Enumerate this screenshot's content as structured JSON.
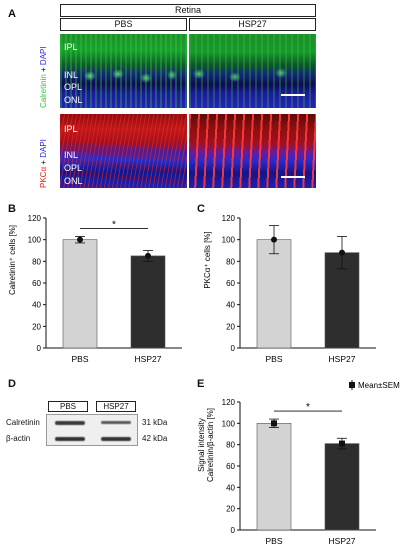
{
  "panels": {
    "A": "A",
    "B": "B",
    "C": "C",
    "D": "D",
    "E": "E"
  },
  "panel_a": {
    "region": "Retina",
    "columns": [
      "PBS",
      "HSP27"
    ],
    "top_row": {
      "stain_main": "Calretinin",
      "stain_sep": " + ",
      "stain_counter": "DAPI",
      "colors": {
        "main": "#2fc43a",
        "counter": "#2a2ad8"
      },
      "layers": [
        "IPL",
        "INL",
        "OPL",
        "ONL"
      ]
    },
    "bottom_row": {
      "stain_main": "PKCα",
      "stain_sep": " + ",
      "stain_counter": "DAPI",
      "colors": {
        "main": "#e41b1b",
        "counter": "#2a2ad8"
      },
      "layers": [
        "IPL",
        "INL",
        "OPL",
        "ONL"
      ]
    }
  },
  "panel_d": {
    "columns": [
      "PBS",
      "HSP27"
    ],
    "rows": [
      {
        "label": "Calretinin",
        "size": "31 kDa"
      },
      {
        "label": "β-actin",
        "size": "42 kDa"
      }
    ]
  },
  "chart_data": [
    {
      "type": "bar",
      "panel": "B",
      "categories": [
        "PBS",
        "HSP27"
      ],
      "values": [
        100,
        85
      ],
      "errors": [
        3,
        5
      ],
      "ylabel": "Calretinin⁺ cells [%]",
      "ylim": [
        0,
        120
      ],
      "yticks": [
        "0",
        "20",
        "40",
        "60",
        "80",
        "100",
        "120"
      ],
      "significance": "*",
      "colors": [
        "#d3d3d3",
        "#2e2e2e"
      ]
    },
    {
      "type": "bar",
      "panel": "C",
      "categories": [
        "PBS",
        "HSP27"
      ],
      "values": [
        100,
        88
      ],
      "errors": [
        13,
        15
      ],
      "ylabel": "PKCα⁺ cells [%]",
      "ylim": [
        0,
        120
      ],
      "yticks": [
        "0",
        "20",
        "40",
        "60",
        "80",
        "100",
        "120"
      ],
      "significance": "",
      "colors": [
        "#d3d3d3",
        "#2e2e2e"
      ]
    },
    {
      "type": "bar",
      "panel": "E",
      "categories": [
        "PBS",
        "HSP27"
      ],
      "values": [
        100,
        81
      ],
      "errors": [
        4,
        5
      ],
      "ylabel_line1": "Signal intensity",
      "ylabel_line2": "Calretinin/β-actin  [%]",
      "ylim": [
        0,
        120
      ],
      "yticks": [
        "0",
        "20",
        "40",
        "60",
        "80",
        "100",
        "120"
      ],
      "significance": "*",
      "colors": [
        "#d3d3d3",
        "#2e2e2e"
      ],
      "legend": "Mean±SEM"
    }
  ]
}
